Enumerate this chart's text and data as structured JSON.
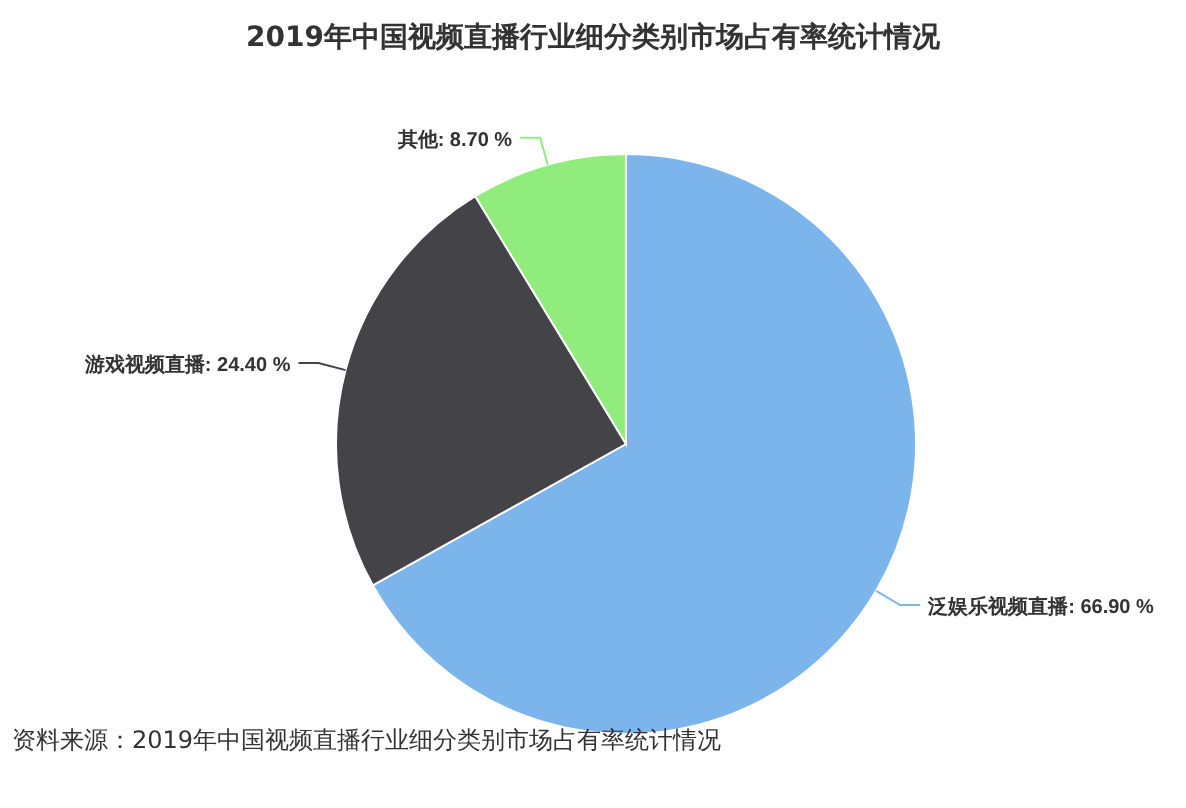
{
  "chart_data": {
    "type": "pie",
    "title": "2019年中国视频直播行业细分类别市场占有率统计情况",
    "categories": [
      "泛娱乐视频直播",
      "游戏视频直播",
      "其他"
    ],
    "values": [
      66.9,
      24.4,
      8.7
    ],
    "colors": [
      "#7cb5ec",
      "#434348",
      "#90ed7d"
    ],
    "value_labels": [
      "66.90 %",
      "24.40 %",
      "8.70 %"
    ],
    "annotations": [
      "资料来源：2019年中国视频直播行业细分类别市场占有率统计情况"
    ]
  }
}
